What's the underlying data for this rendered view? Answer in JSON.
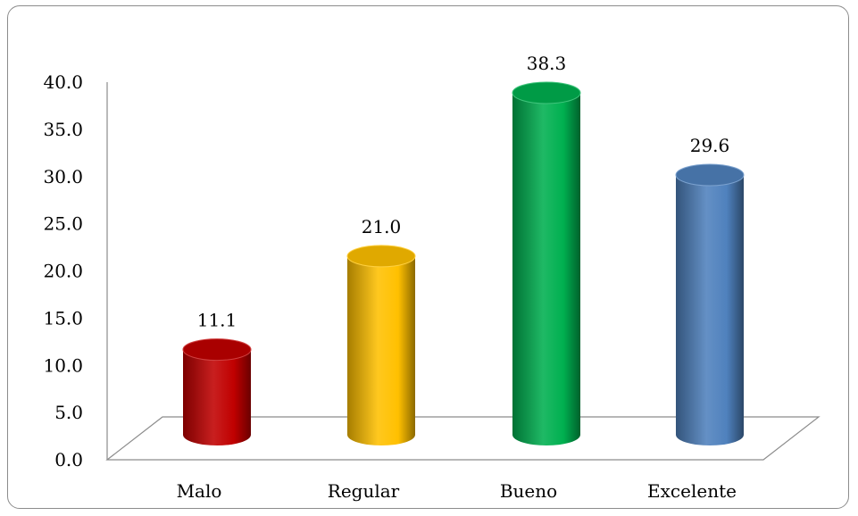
{
  "chart_data": {
    "type": "bar",
    "title": "",
    "xlabel": "",
    "ylabel": "",
    "categories": [
      "Malo",
      "Regular",
      "Bueno",
      "Excelente"
    ],
    "values": [
      11.1,
      21.0,
      38.3,
      29.6
    ],
    "data_labels": [
      "11.1",
      "21.0",
      "38.3",
      "29.6"
    ],
    "colors": [
      "#c00000",
      "#ffc000",
      "#00b050",
      "#4f81bd"
    ],
    "ylim": [
      0,
      40
    ],
    "yticks": [
      "0.0",
      "5.0",
      "10.0",
      "15.0",
      "20.0",
      "25.0",
      "30.0",
      "35.0",
      "40.0"
    ],
    "style": "3d-cylinder",
    "grid": false,
    "legend": "none"
  }
}
